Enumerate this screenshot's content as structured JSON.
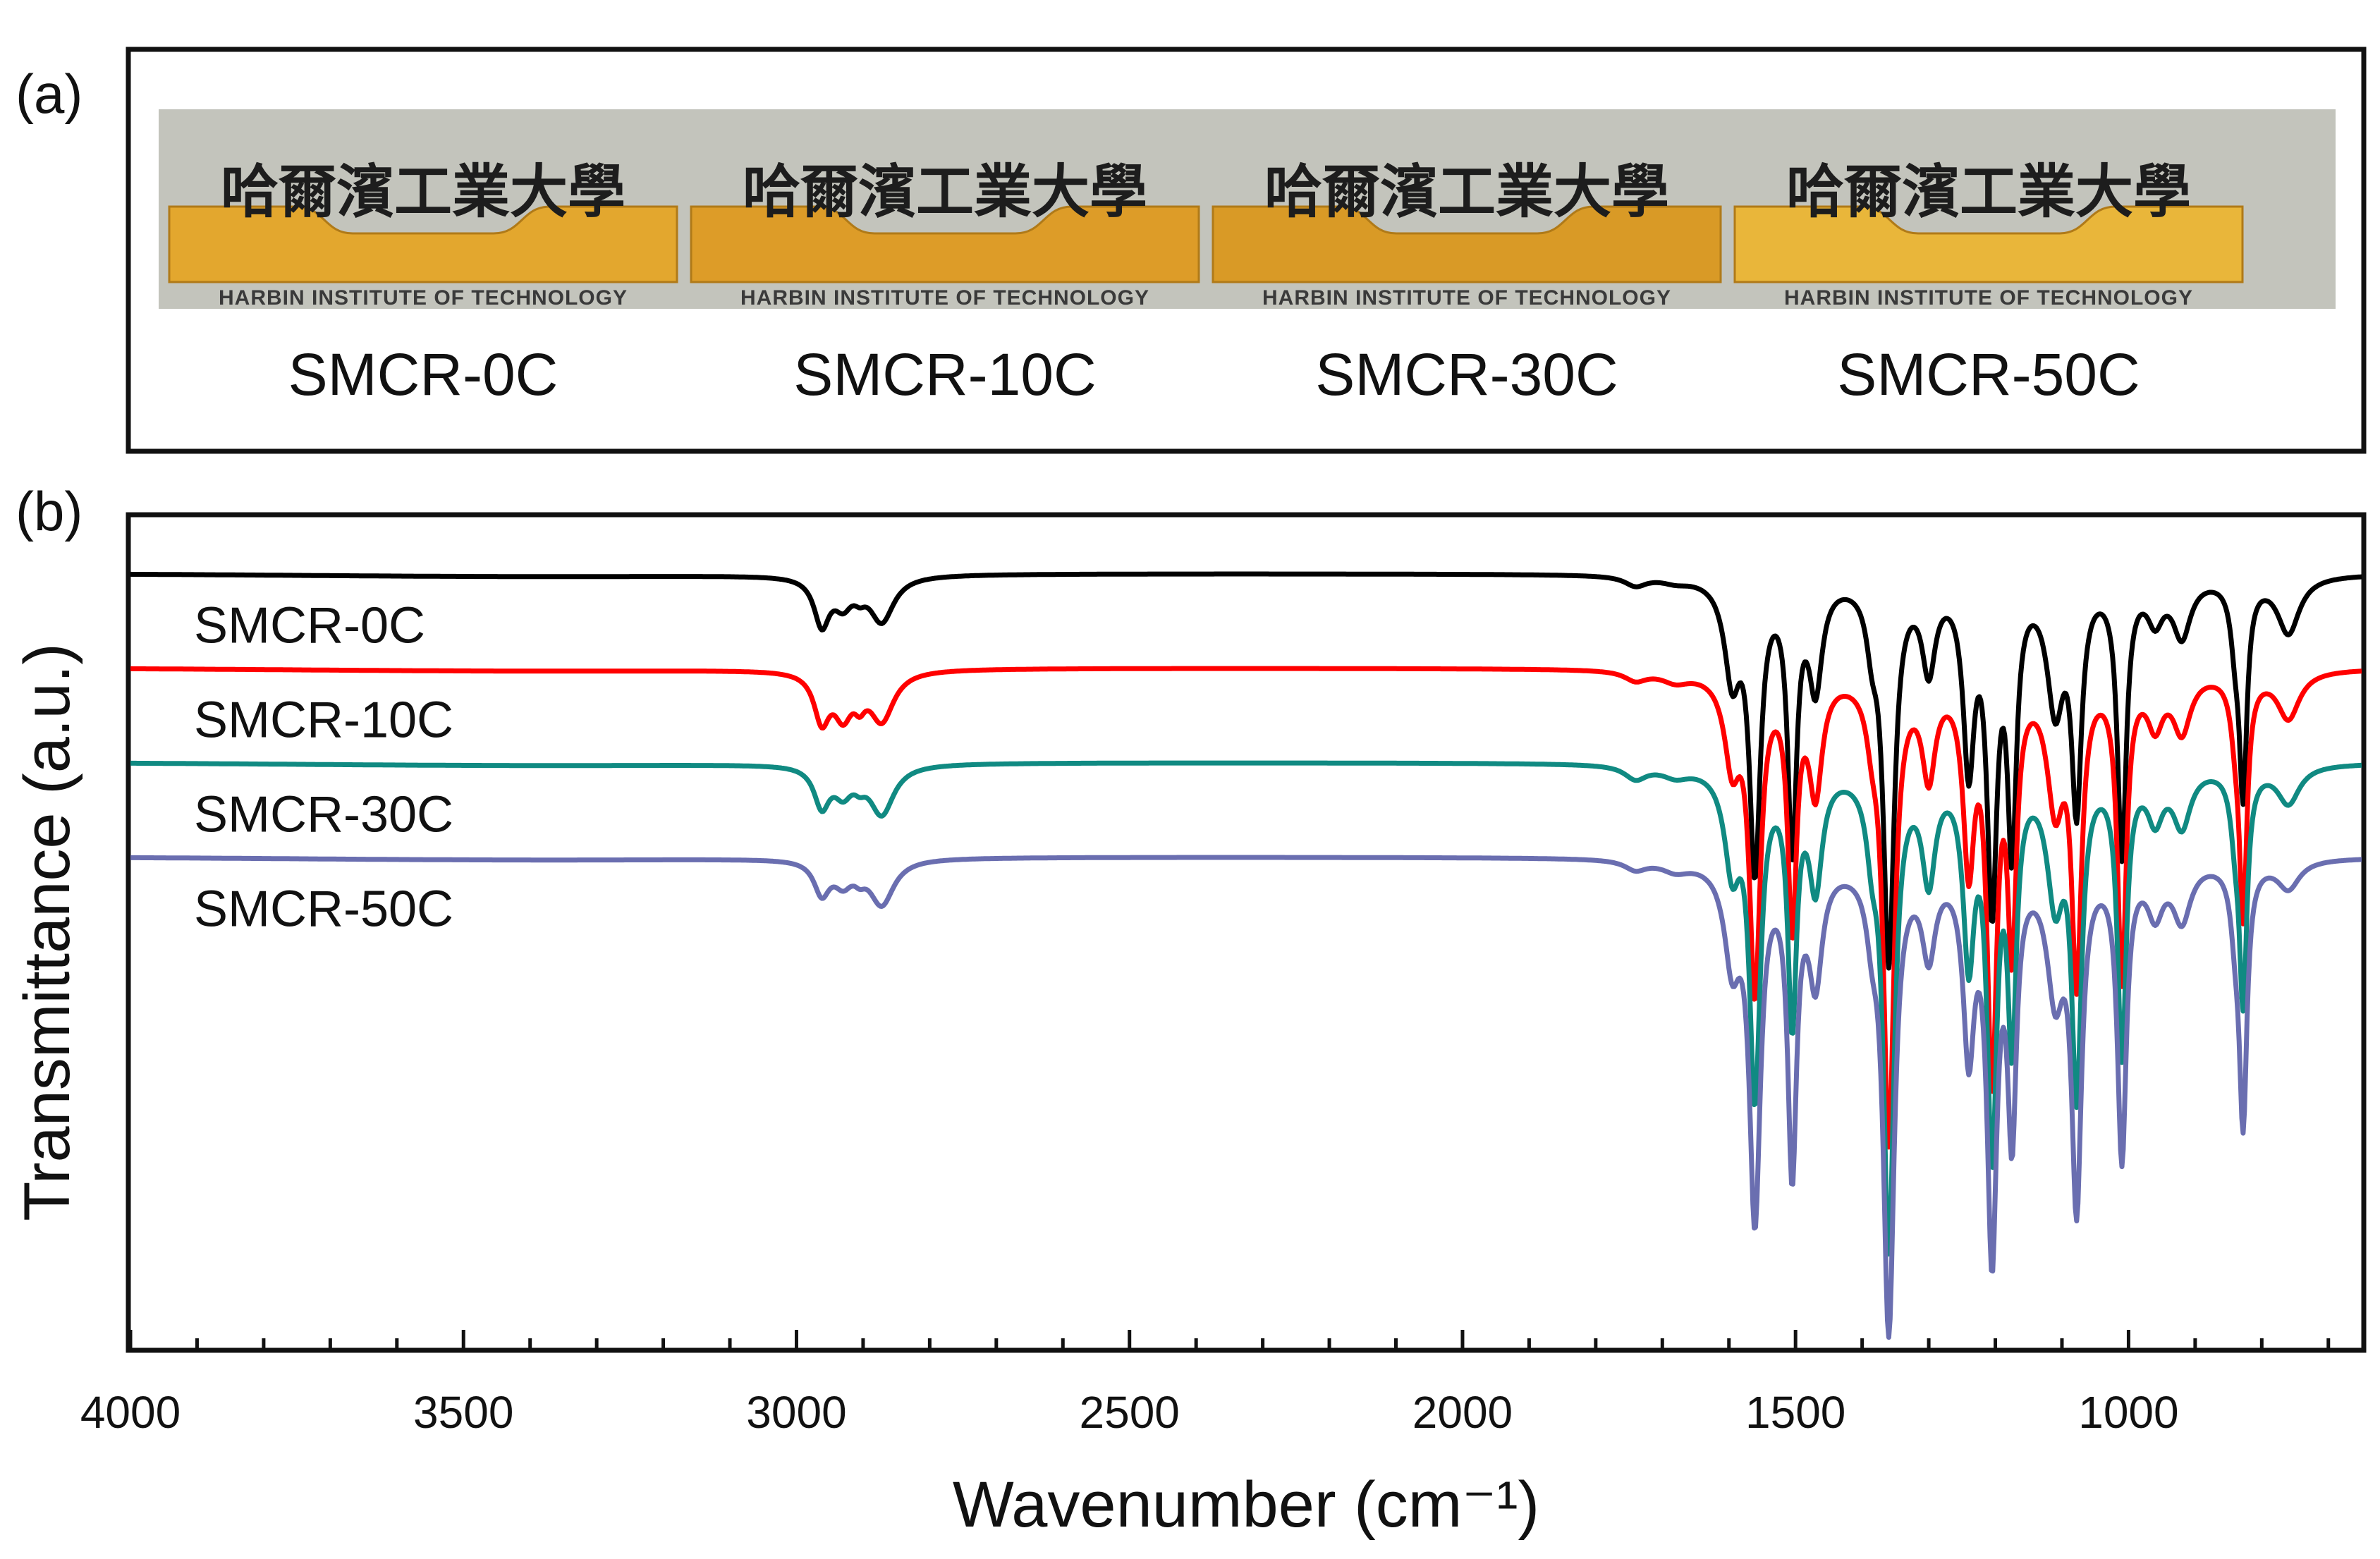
{
  "panel_a": {
    "label": "(a)",
    "samples": [
      {
        "name": "SMCR-0C",
        "logo_cn": "哈爾濱工業大學",
        "logo_en": "HARBIN INSTITUTE OF TECHNOLOGY",
        "tint": "#e3a72e"
      },
      {
        "name": "SMCR-10C",
        "logo_cn": "哈爾濱工業大學",
        "logo_en": "HARBIN INSTITUTE OF TECHNOLOGY",
        "tint": "#dd9c28"
      },
      {
        "name": "SMCR-30C",
        "logo_cn": "哈爾濱工業大學",
        "logo_en": "HARBIN INSTITUTE OF TECHNOLOGY",
        "tint": "#d99a26"
      },
      {
        "name": "SMCR-50C",
        "logo_cn": "哈爾濱工業大學",
        "logo_en": "HARBIN INSTITUTE OF TECHNOLOGY",
        "tint": "#e9b63a"
      }
    ]
  },
  "panel_b": {
    "label": "(b)"
  },
  "chart_data": {
    "type": "line",
    "xlabel": "Wavenumber (cm⁻¹)",
    "ylabel": "Transmittance (a.u.)",
    "xlim": [
      4000,
      650
    ],
    "ylim": [
      0,
      8.8
    ],
    "x_reversed": true,
    "xticks": [
      4000,
      3500,
      3000,
      2500,
      2000,
      1500,
      1000
    ],
    "xtick_labels": [
      "4000",
      "3500",
      "3000",
      "2500",
      "2000",
      "1500",
      "1000"
    ],
    "grid": false,
    "legend": "none (labels on curves, upper-left)",
    "series": [
      {
        "name": "SMCR-0C",
        "color": "#000000",
        "offset": 8.2
      },
      {
        "name": "SMCR-10C",
        "color": "#ff0000",
        "offset": 7.2
      },
      {
        "name": "SMCR-30C",
        "color": "#108a82",
        "offset": 6.2
      },
      {
        "name": "SMCR-50C",
        "color": "#6a6eb0",
        "offset": 5.2
      }
    ],
    "peaks": [
      {
        "x": 2962,
        "depth": [
          0.5,
          0.5,
          0.42,
          0.35
        ],
        "width": 14
      },
      {
        "x": 2930,
        "depth": [
          0.26,
          0.42,
          0.26,
          0.22
        ],
        "width": 16
      },
      {
        "x": 2872,
        "depth": [
          0.48,
          0.52,
          0.52,
          0.48
        ],
        "width": 22
      },
      {
        "x": 2905,
        "depth": [
          0.1,
          0.2,
          0.1,
          0.1
        ],
        "width": 10
      },
      {
        "x": 1680,
        "depth": [
          0.05,
          0.1,
          0.1,
          0.1
        ],
        "width": 25
      },
      {
        "x": 1740,
        "depth": [
          0.1,
          0.1,
          0.14,
          0.1
        ],
        "width": 20
      },
      {
        "x": 1595,
        "depth": [
          1.0,
          0.9,
          1.0,
          1.0
        ],
        "width": 14
      },
      {
        "x": 1561,
        "depth": [
          3.0,
          3.3,
          3.4,
          3.7
        ],
        "width": 10
      },
      {
        "x": 1505,
        "depth": [
          2.8,
          2.6,
          2.6,
          3.2
        ],
        "width": 8
      },
      {
        "x": 1470,
        "depth": [
          1.1,
          1.2,
          1.2,
          1.2
        ],
        "width": 12
      },
      {
        "x": 1385,
        "depth": [
          0.5,
          0.4,
          0.6,
          0.5
        ],
        "width": 10
      },
      {
        "x": 1360,
        "depth": [
          4.0,
          4.9,
          5.0,
          4.9
        ],
        "width": 10
      },
      {
        "x": 1300,
        "depth": [
          0.9,
          1.0,
          1.1,
          0.9
        ],
        "width": 12
      },
      {
        "x": 1240,
        "depth": [
          1.9,
          1.9,
          1.9,
          1.9
        ],
        "width": 10
      },
      {
        "x": 1205,
        "depth": [
          3.3,
          4.1,
          3.9,
          4.0
        ],
        "width": 9
      },
      {
        "x": 1175,
        "depth": [
          2.7,
          2.7,
          2.7,
          2.7
        ],
        "width": 8
      },
      {
        "x": 1110,
        "depth": [
          1.3,
          1.3,
          1.3,
          1.3
        ],
        "width": 15
      },
      {
        "x": 1078,
        "depth": [
          2.3,
          3.1,
          3.3,
          3.5
        ],
        "width": 9
      },
      {
        "x": 1010,
        "depth": [
          2.9,
          3.2,
          3.0,
          3.1
        ],
        "width": 8
      },
      {
        "x": 960,
        "depth": [
          0.4,
          0.5,
          0.5,
          0.5
        ],
        "width": 14
      },
      {
        "x": 920,
        "depth": [
          0.6,
          0.6,
          0.6,
          0.6
        ],
        "width": 16
      },
      {
        "x": 840,
        "depth": [
          0.5,
          0.4,
          0.5,
          0.5
        ],
        "width": 8
      },
      {
        "x": 828,
        "depth": [
          2.2,
          2.5,
          2.4,
          2.7
        ],
        "width": 7
      },
      {
        "x": 760,
        "depth": [
          0.6,
          0.5,
          0.4,
          0.3
        ],
        "width": 20
      }
    ]
  }
}
